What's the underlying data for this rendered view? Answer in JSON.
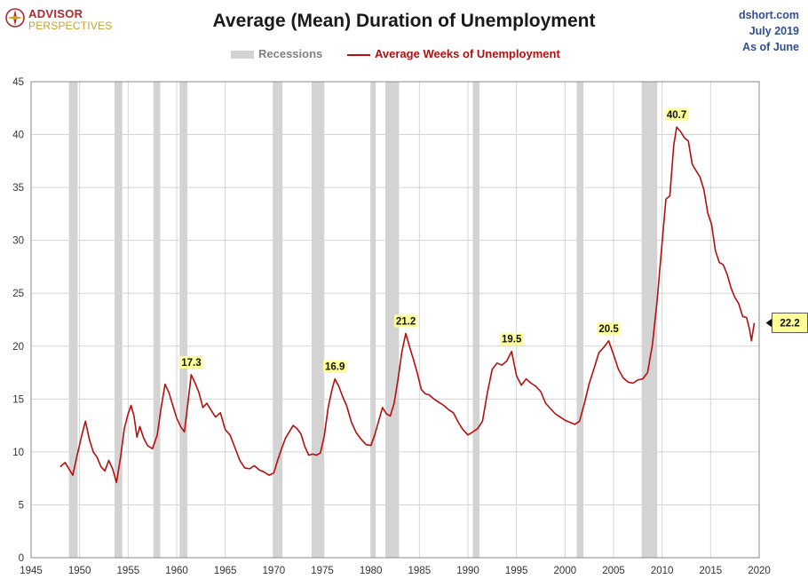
{
  "logo": {
    "line1": "ADVISOR",
    "line2": "PERSPECTIVES"
  },
  "title": "Average (Mean) Duration of Unemployment",
  "source": {
    "site": "dshort.com",
    "date": "July 2019",
    "asof": "As of June"
  },
  "legend": {
    "recessions": "Recessions",
    "series": "Average Weeks of Unemployment"
  },
  "colors": {
    "line": "#b40f0f",
    "recession": "#d3d3d3",
    "callout": "#ffff99",
    "grid": "#d4d4d4"
  },
  "chart_data": {
    "type": "line",
    "title": "Average (Mean) Duration of Unemployment",
    "xlim": [
      1945,
      2020
    ],
    "ylim": [
      0,
      45
    ],
    "x_ticks": [
      "1945",
      "1950",
      "1955",
      "1960",
      "1965",
      "1970",
      "1975",
      "1980",
      "1985",
      "1990",
      "1995",
      "2000",
      "2005",
      "2010",
      "2015",
      "2020"
    ],
    "y_ticks": [
      "0",
      "5",
      "10",
      "15",
      "20",
      "25",
      "30",
      "35",
      "40",
      "45"
    ],
    "grid": true,
    "legend_position": "top-center",
    "recessions": [
      [
        1948.9,
        1949.8
      ],
      [
        1953.6,
        1954.4
      ],
      [
        1957.6,
        1958.3
      ],
      [
        1960.3,
        1961.1
      ],
      [
        1969.9,
        1970.9
      ],
      [
        1973.9,
        1975.2
      ],
      [
        1980.0,
        1980.5
      ],
      [
        1981.5,
        1982.9
      ],
      [
        1990.5,
        1991.2
      ],
      [
        2001.2,
        2001.9
      ],
      [
        2007.9,
        2009.5
      ]
    ],
    "series": [
      {
        "name": "Average Weeks of Unemployment",
        "points": [
          [
            1948.0,
            8.6
          ],
          [
            1948.5,
            9.0
          ],
          [
            1948.9,
            8.4
          ],
          [
            1949.3,
            7.8
          ],
          [
            1949.7,
            9.5
          ],
          [
            1950.2,
            11.5
          ],
          [
            1950.6,
            12.9
          ],
          [
            1951.0,
            11.2
          ],
          [
            1951.4,
            10.0
          ],
          [
            1951.8,
            9.5
          ],
          [
            1952.2,
            8.6
          ],
          [
            1952.6,
            8.2
          ],
          [
            1953.0,
            9.2
          ],
          [
            1953.4,
            8.4
          ],
          [
            1953.8,
            7.1
          ],
          [
            1954.2,
            9.4
          ],
          [
            1954.6,
            12.2
          ],
          [
            1955.0,
            13.6
          ],
          [
            1955.3,
            14.4
          ],
          [
            1955.6,
            13.4
          ],
          [
            1955.9,
            11.4
          ],
          [
            1956.2,
            12.4
          ],
          [
            1956.6,
            11.3
          ],
          [
            1957.0,
            10.6
          ],
          [
            1957.5,
            10.3
          ],
          [
            1958.0,
            11.6
          ],
          [
            1958.4,
            14.2
          ],
          [
            1958.8,
            16.4
          ],
          [
            1959.2,
            15.6
          ],
          [
            1959.6,
            14.4
          ],
          [
            1960.0,
            13.2
          ],
          [
            1960.4,
            12.4
          ],
          [
            1960.8,
            11.9
          ],
          [
            1961.1,
            14.2
          ],
          [
            1961.5,
            17.3
          ],
          [
            1961.9,
            16.5
          ],
          [
            1962.3,
            15.6
          ],
          [
            1962.7,
            14.2
          ],
          [
            1963.1,
            14.6
          ],
          [
            1963.5,
            14.0
          ],
          [
            1964.0,
            13.3
          ],
          [
            1964.5,
            13.7
          ],
          [
            1965.0,
            12.1
          ],
          [
            1965.5,
            11.6
          ],
          [
            1966.0,
            10.4
          ],
          [
            1966.5,
            9.2
          ],
          [
            1967.0,
            8.5
          ],
          [
            1967.5,
            8.4
          ],
          [
            1968.0,
            8.7
          ],
          [
            1968.5,
            8.3
          ],
          [
            1969.0,
            8.1
          ],
          [
            1969.5,
            7.8
          ],
          [
            1970.0,
            8.0
          ],
          [
            1970.4,
            9.2
          ],
          [
            1970.8,
            10.3
          ],
          [
            1971.2,
            11.3
          ],
          [
            1971.6,
            11.9
          ],
          [
            1972.0,
            12.5
          ],
          [
            1972.4,
            12.2
          ],
          [
            1972.8,
            11.7
          ],
          [
            1973.2,
            10.5
          ],
          [
            1973.6,
            9.7
          ],
          [
            1974.0,
            9.8
          ],
          [
            1974.4,
            9.7
          ],
          [
            1974.8,
            9.9
          ],
          [
            1975.2,
            11.5
          ],
          [
            1975.6,
            14.2
          ],
          [
            1976.0,
            15.9
          ],
          [
            1976.3,
            16.9
          ],
          [
            1976.7,
            16.2
          ],
          [
            1977.1,
            15.2
          ],
          [
            1977.5,
            14.4
          ],
          [
            1978.0,
            12.8
          ],
          [
            1978.5,
            11.8
          ],
          [
            1979.0,
            11.2
          ],
          [
            1979.5,
            10.7
          ],
          [
            1980.0,
            10.6
          ],
          [
            1980.4,
            11.6
          ],
          [
            1980.8,
            12.9
          ],
          [
            1981.2,
            14.2
          ],
          [
            1981.6,
            13.6
          ],
          [
            1982.0,
            13.4
          ],
          [
            1982.4,
            14.6
          ],
          [
            1982.8,
            16.9
          ],
          [
            1983.2,
            19.5
          ],
          [
            1983.6,
            21.2
          ],
          [
            1984.0,
            19.9
          ],
          [
            1984.4,
            18.7
          ],
          [
            1984.8,
            17.4
          ],
          [
            1985.2,
            15.9
          ],
          [
            1985.6,
            15.5
          ],
          [
            1986.0,
            15.4
          ],
          [
            1986.5,
            15.0
          ],
          [
            1987.0,
            14.7
          ],
          [
            1987.5,
            14.4
          ],
          [
            1988.0,
            14.0
          ],
          [
            1988.5,
            13.7
          ],
          [
            1989.0,
            12.8
          ],
          [
            1989.5,
            12.1
          ],
          [
            1990.0,
            11.6
          ],
          [
            1990.5,
            11.9
          ],
          [
            1991.0,
            12.2
          ],
          [
            1991.5,
            12.9
          ],
          [
            1992.0,
            15.6
          ],
          [
            1992.5,
            17.8
          ],
          [
            1993.0,
            18.4
          ],
          [
            1993.5,
            18.2
          ],
          [
            1994.0,
            18.6
          ],
          [
            1994.5,
            19.5
          ],
          [
            1995.0,
            17.2
          ],
          [
            1995.5,
            16.3
          ],
          [
            1996.0,
            16.9
          ],
          [
            1996.5,
            16.5
          ],
          [
            1997.0,
            16.2
          ],
          [
            1997.5,
            15.7
          ],
          [
            1998.0,
            14.6
          ],
          [
            1998.5,
            14.1
          ],
          [
            1999.0,
            13.6
          ],
          [
            1999.5,
            13.3
          ],
          [
            2000.0,
            13.0
          ],
          [
            2000.5,
            12.8
          ],
          [
            2001.0,
            12.6
          ],
          [
            2001.5,
            12.9
          ],
          [
            2002.0,
            14.6
          ],
          [
            2002.5,
            16.5
          ],
          [
            2003.0,
            17.9
          ],
          [
            2003.5,
            19.4
          ],
          [
            2004.0,
            19.9
          ],
          [
            2004.5,
            20.5
          ],
          [
            2005.0,
            19.2
          ],
          [
            2005.5,
            17.8
          ],
          [
            2006.0,
            17.0
          ],
          [
            2006.5,
            16.6
          ],
          [
            2007.0,
            16.5
          ],
          [
            2007.5,
            16.8
          ],
          [
            2008.0,
            16.9
          ],
          [
            2008.5,
            17.5
          ],
          [
            2009.0,
            20.1
          ],
          [
            2009.5,
            24.4
          ],
          [
            2010.0,
            29.8
          ],
          [
            2010.4,
            33.9
          ],
          [
            2010.8,
            34.2
          ],
          [
            2011.2,
            39.0
          ],
          [
            2011.5,
            40.7
          ],
          [
            2011.9,
            40.3
          ],
          [
            2012.3,
            39.7
          ],
          [
            2012.7,
            39.4
          ],
          [
            2013.1,
            37.2
          ],
          [
            2013.5,
            36.6
          ],
          [
            2013.9,
            36.0
          ],
          [
            2014.3,
            34.8
          ],
          [
            2014.7,
            32.6
          ],
          [
            2015.1,
            31.5
          ],
          [
            2015.5,
            29.0
          ],
          [
            2015.9,
            27.9
          ],
          [
            2016.3,
            27.7
          ],
          [
            2016.7,
            26.8
          ],
          [
            2017.1,
            25.5
          ],
          [
            2017.5,
            24.6
          ],
          [
            2017.9,
            24.0
          ],
          [
            2018.3,
            22.8
          ],
          [
            2018.7,
            22.7
          ],
          [
            2019.0,
            21.6
          ],
          [
            2019.2,
            20.5
          ],
          [
            2019.5,
            22.2
          ]
        ]
      }
    ],
    "annotations": [
      {
        "x": 1961.5,
        "y": 17.3,
        "label": "17.3"
      },
      {
        "x": 1976.3,
        "y": 16.9,
        "label": "16.9"
      },
      {
        "x": 1983.6,
        "y": 21.2,
        "label": "21.2"
      },
      {
        "x": 1994.5,
        "y": 19.5,
        "label": "19.5"
      },
      {
        "x": 2004.5,
        "y": 20.5,
        "label": "20.5"
      },
      {
        "x": 2011.5,
        "y": 40.7,
        "label": "40.7"
      }
    ],
    "last_value": {
      "x": 2019.5,
      "y": 22.2,
      "label": "22.2"
    }
  }
}
